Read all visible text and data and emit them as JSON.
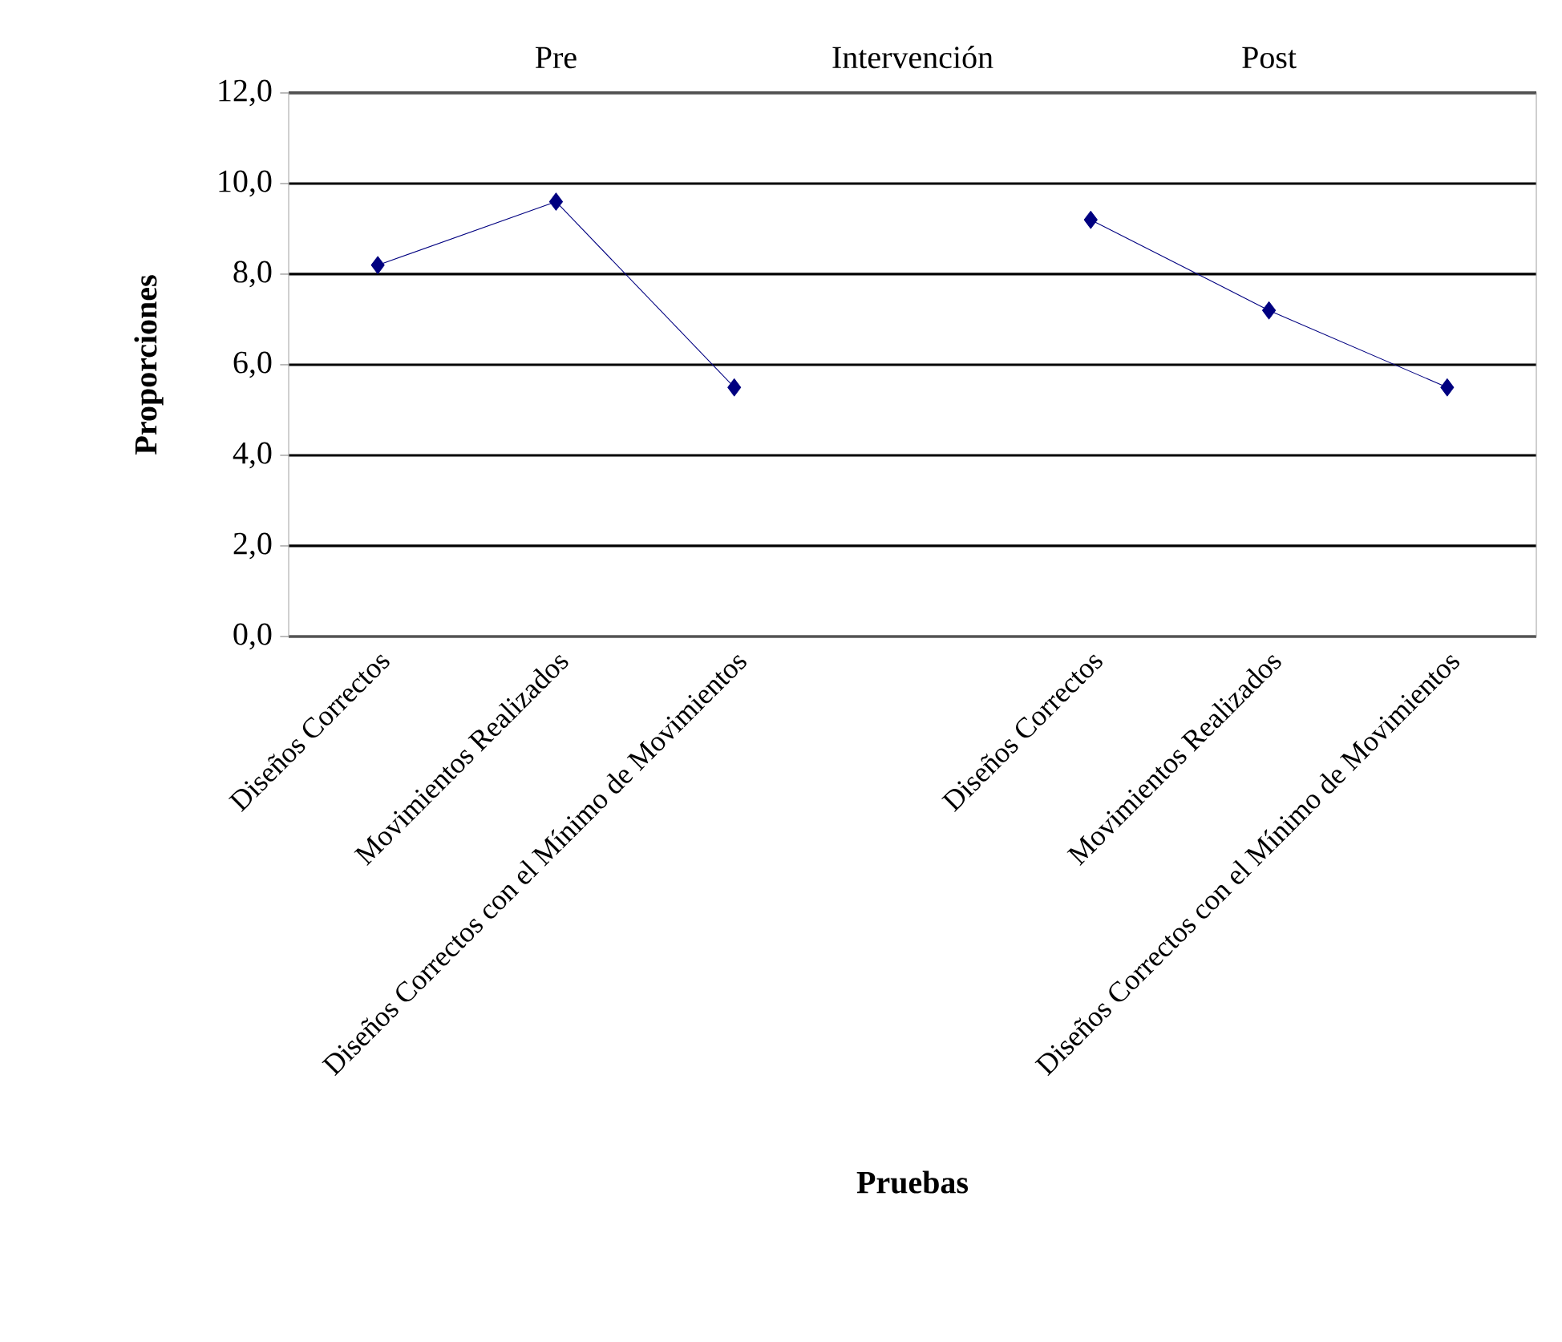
{
  "chart_data": {
    "type": "line",
    "xlabel": "Pruebas",
    "ylabel": "Proporciones",
    "categories": [
      "Diseños Correctos",
      "Movimientos Realizados",
      "Diseños Correctos con el Mínimo de Movimientos",
      null,
      "Diseños Correctos",
      "Movimientos Realizados",
      "Diseños Correctos con el Mínimo de Movimientos"
    ],
    "series": [
      {
        "color": "#000080",
        "values": [
          8.2,
          9.6,
          5.5,
          null,
          9.2,
          7.2,
          5.5
        ]
      }
    ],
    "ylim": [
      0,
      12
    ],
    "yticks": [
      {
        "value": 0,
        "label": "0,0"
      },
      {
        "value": 2,
        "label": "2,0"
      },
      {
        "value": 4,
        "label": "4,0"
      },
      {
        "value": 6,
        "label": "6,0"
      },
      {
        "value": 8,
        "label": "8,0"
      },
      {
        "value": 10,
        "label": "10,0"
      },
      {
        "value": 12,
        "label": "12,0"
      }
    ],
    "annotations": [
      "Pre",
      "Intervención",
      "Post"
    ],
    "grid": "y",
    "marker": "diamond",
    "line_style": "solid"
  }
}
